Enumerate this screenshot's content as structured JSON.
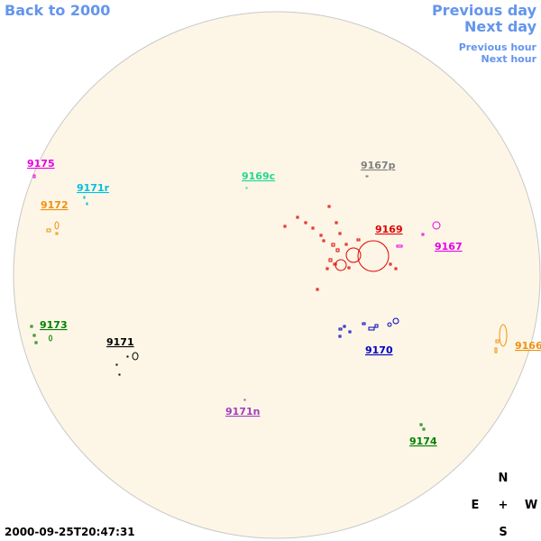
{
  "nav": {
    "back": "Back to 2000",
    "previous_day": "Previous day",
    "next_day": "Next day",
    "previous_hour": "Previous hour",
    "next_hour": "Next hour"
  },
  "regions": [
    "9175",
    "9171r",
    "9169c",
    "9167p",
    "9172",
    "9169",
    "9167",
    "9173",
    "9171",
    "9170",
    "9166",
    "9171n",
    "9174"
  ],
  "timestamp": "2000-09-25T20:47:31",
  "compass": {
    "north": "N",
    "east": "E",
    "center": "+",
    "west": "W",
    "south": "S"
  }
}
